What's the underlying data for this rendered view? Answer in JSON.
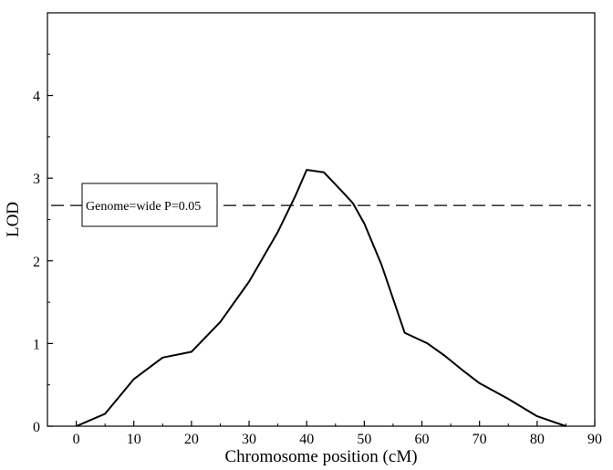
{
  "chart_data": {
    "type": "line",
    "xlabel": "Chromosome position (cM)",
    "ylabel": "LOD",
    "xlim": [
      -5,
      90
    ],
    "ylim": [
      0,
      5
    ],
    "xticks": [
      0,
      10,
      20,
      30,
      40,
      50,
      60,
      70,
      80,
      90
    ],
    "yticks": [
      0,
      1,
      2,
      3,
      4
    ],
    "grid": false,
    "series": [
      {
        "x": [
          0,
          5,
          10,
          15,
          20,
          25,
          30,
          35,
          38,
          40,
          43,
          46,
          48,
          50,
          53,
          57,
          61,
          64,
          67,
          70,
          75,
          80,
          85
        ],
        "y": [
          0,
          0.15,
          0.57,
          0.83,
          0.9,
          1.26,
          1.75,
          2.35,
          2.78,
          3.1,
          3.07,
          2.85,
          2.7,
          2.45,
          1.95,
          1.13,
          1.0,
          0.85,
          0.68,
          0.52,
          0.33,
          0.12,
          0.0
        ]
      }
    ],
    "threshold": {
      "y": 2.67,
      "style": "dashed",
      "label": "Genome=wide P=0.05"
    }
  }
}
